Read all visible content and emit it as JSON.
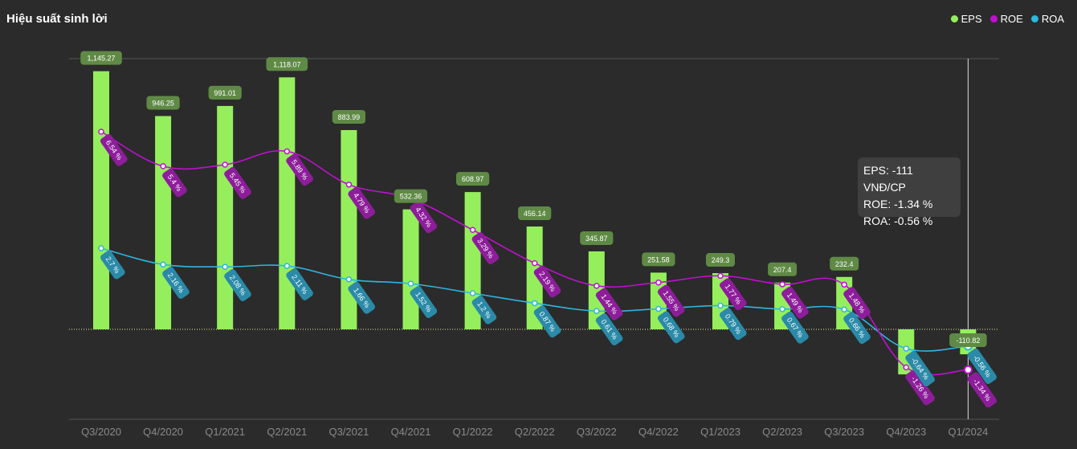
{
  "title": "Hiệu suất sinh lời",
  "legend": [
    {
      "label": "EPS",
      "color": "#95ef5c"
    },
    {
      "label": "ROE",
      "color": "#c010d0"
    },
    {
      "label": "ROA",
      "color": "#2fb5e0"
    }
  ],
  "tooltip": {
    "eps": "EPS: -111 VNĐ/CP",
    "roe": "ROE: -1.34 %",
    "roa": "ROA: -0.56 %"
  },
  "chart_data": {
    "type": "bar",
    "categories": [
      "Q3/2020",
      "Q4/2020",
      "Q1/2021",
      "Q2/2021",
      "Q3/2021",
      "Q4/2021",
      "Q1/2022",
      "Q2/2022",
      "Q3/2022",
      "Q4/2022",
      "Q1/2023",
      "Q2/2023",
      "Q3/2023",
      "Q4/2023",
      "Q1/2024"
    ],
    "series": [
      {
        "name": "EPS",
        "type": "bar",
        "color": "#95ef5c",
        "values": [
          1145.27,
          946.25,
          991.01,
          1118.07,
          883.99,
          532.36,
          608.97,
          456.14,
          345.87,
          251.58,
          249.3,
          207.4,
          232.4,
          -200,
          -110.82
        ],
        "labels": [
          "1,145.27",
          "946.25",
          "991.01",
          "1,118.07",
          "883.99",
          "532.36",
          "608.97",
          "456.14",
          "345.87",
          "251.58",
          "249.3",
          "207.4",
          "232.4",
          "",
          "-110.82"
        ]
      },
      {
        "name": "ROE",
        "type": "line",
        "color": "#c010d0",
        "values": [
          6.54,
          5.4,
          5.45,
          5.89,
          4.79,
          4.32,
          3.29,
          2.19,
          1.44,
          1.55,
          1.77,
          1.49,
          1.48,
          -1.26,
          -1.34
        ],
        "labels": [
          "6.54 %",
          "5.4 %",
          "5.45 %",
          "5.89 %",
          "4.79 %",
          "4.32 %",
          "3.29 %",
          "2.19 %",
          "1.44 %",
          "1.55 %",
          "1.77 %",
          "1.49 %",
          "1.48 %",
          "-1.26 %",
          "-1.34 %"
        ]
      },
      {
        "name": "ROA",
        "type": "line",
        "color": "#2fb5e0",
        "values": [
          2.7,
          2.16,
          2.08,
          2.11,
          1.66,
          1.52,
          1.2,
          0.87,
          0.61,
          0.68,
          0.79,
          0.67,
          0.66,
          -0.64,
          -0.56
        ],
        "labels": [
          "2.7 %",
          "2.16 %",
          "2.08 %",
          "2.11 %",
          "1.66 %",
          "1.52 %",
          "1.2 %",
          "0.87 %",
          "0.61 %",
          "0.68 %",
          "0.79 %",
          "0.67 %",
          "0.66 %",
          "-0.64 %",
          "-0.56 %"
        ]
      }
    ],
    "highlighted_category": "Q1/2024",
    "grid": false,
    "legend_position": "top-right"
  }
}
